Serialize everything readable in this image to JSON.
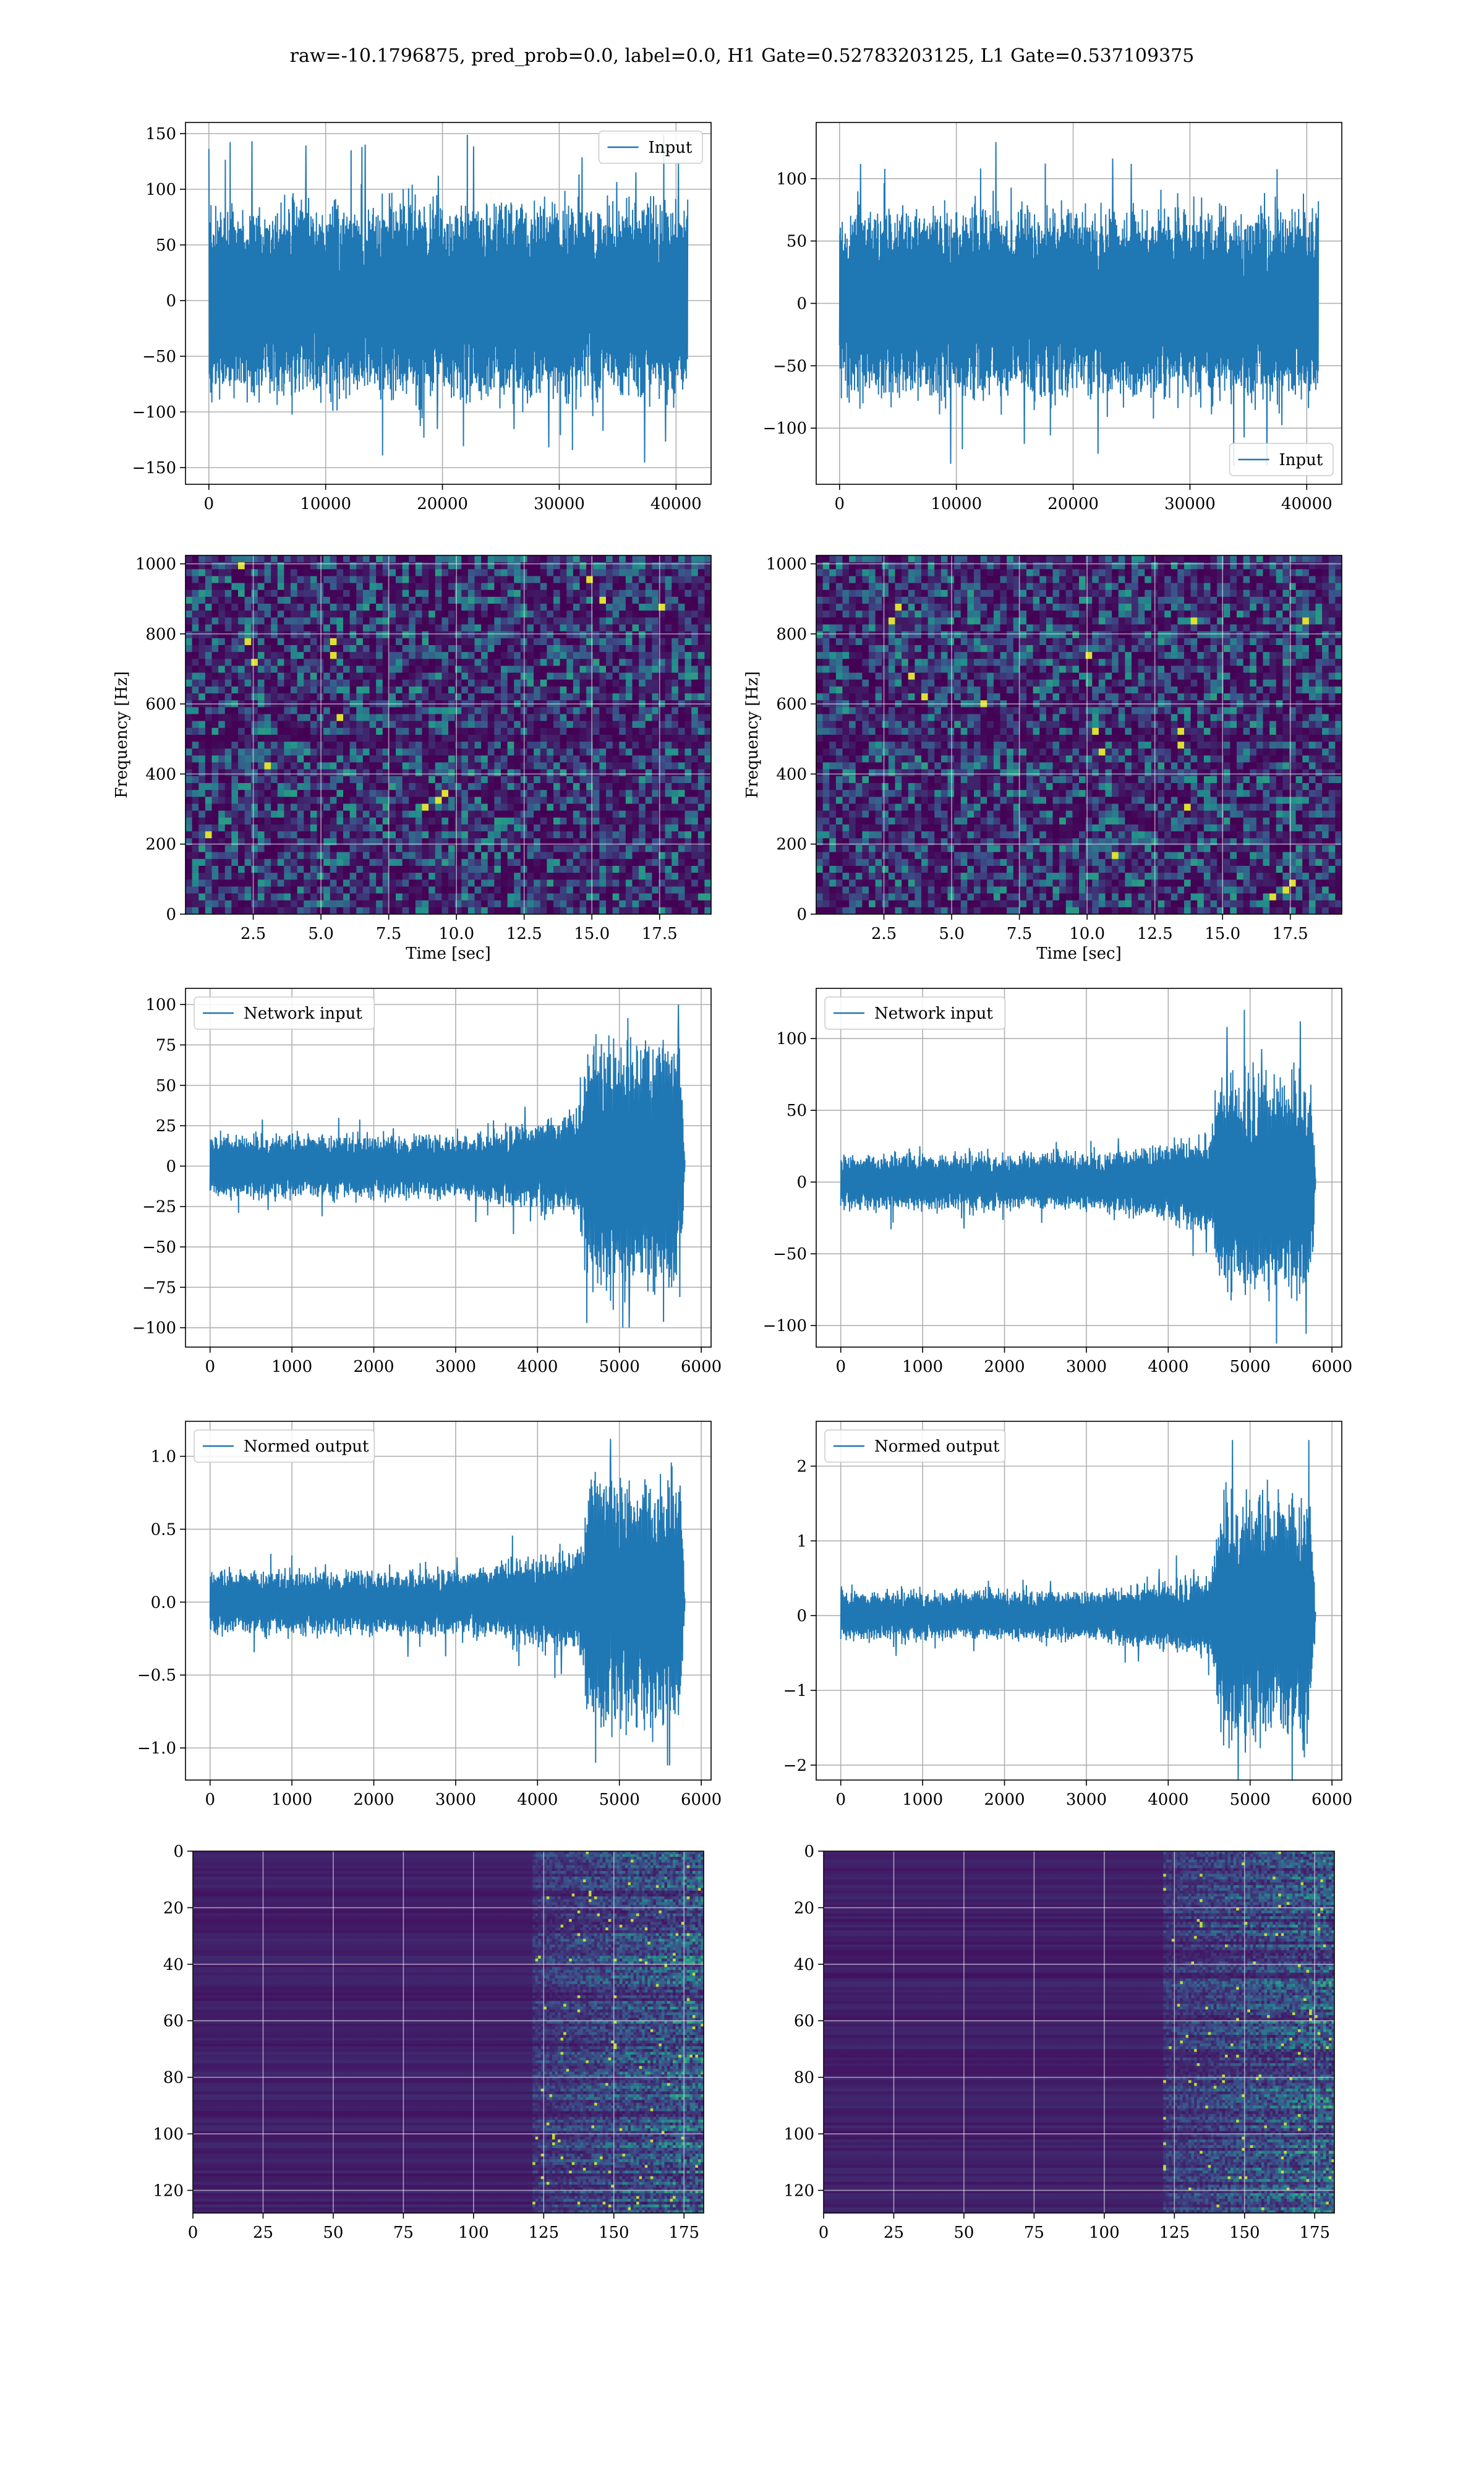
{
  "figure": {
    "suptitle": "raw=-10.1796875, pred_prob=0.0, label=0.0, H1 Gate=0.52783203125, L1 Gate=0.537109375",
    "colors": {
      "line": "#1f77b4",
      "grid": "#b0b0b0",
      "viridis_low": "#440154",
      "viridis_mid": "#21918c",
      "viridis_high": "#fde725"
    }
  },
  "chart_data": [
    {
      "id": "input-h1",
      "type": "line",
      "title": "",
      "xlabel": "",
      "ylabel": "",
      "legend": {
        "label": "Input",
        "loc": "upper right"
      },
      "xlim": [
        -2000,
        43000
      ],
      "ylim": [
        -165,
        160
      ],
      "xticks": [
        0,
        10000,
        20000,
        30000,
        40000
      ],
      "yticks": [
        -150,
        -100,
        -50,
        0,
        50,
        100,
        150
      ],
      "series": [
        {
          "x_range": [
            0,
            41000
          ],
          "points": 1600,
          "envelope": [
            [
              0,
              80
            ],
            [
              0.5,
              80
            ],
            [
              0.85,
              80
            ],
            [
              1,
              80
            ]
          ],
          "spike": 150
        }
      ]
    },
    {
      "id": "input-l1",
      "type": "line",
      "title": "",
      "xlabel": "",
      "ylabel": "",
      "legend": {
        "label": "Input",
        "loc": "lower right"
      },
      "xlim": [
        -2000,
        43000
      ],
      "ylim": [
        -145,
        145
      ],
      "xticks": [
        0,
        10000,
        20000,
        30000,
        40000
      ],
      "yticks": [
        -100,
        -50,
        0,
        50,
        100
      ],
      "series": [
        {
          "x_range": [
            0,
            41000
          ],
          "points": 1600,
          "envelope": [
            [
              0,
              70
            ],
            [
              0.5,
              70
            ],
            [
              0.85,
              70
            ],
            [
              1,
              70
            ]
          ],
          "spike": 130
        }
      ]
    },
    {
      "id": "spectrogram-h1",
      "type": "heatmap",
      "title": "",
      "xlabel": "Time [sec]",
      "ylabel": "Frequency [Hz]",
      "xlim": [
        0,
        19.4
      ],
      "ylim": [
        0,
        1024
      ],
      "xticks": [
        2.5,
        5.0,
        7.5,
        10.0,
        12.5,
        15.0,
        17.5
      ],
      "yticks": [
        0,
        200,
        400,
        600,
        800,
        1000
      ],
      "grid_cells": [
        80,
        52
      ],
      "colormap": "viridis",
      "stripe_rows_hz": [
        500
      ]
    },
    {
      "id": "spectrogram-l1",
      "type": "heatmap",
      "title": "",
      "xlabel": "Time [sec]",
      "ylabel": "Frequency [Hz]",
      "xlim": [
        0,
        19.4
      ],
      "ylim": [
        0,
        1024
      ],
      "xticks": [
        2.5,
        5.0,
        7.5,
        10.0,
        12.5,
        15.0,
        17.5
      ],
      "yticks": [
        0,
        200,
        400,
        600,
        800,
        1000
      ],
      "grid_cells": [
        80,
        52
      ],
      "colormap": "viridis",
      "stripe_rows_hz": [
        500
      ]
    },
    {
      "id": "network-input-h1",
      "type": "line",
      "title": "",
      "xlabel": "",
      "ylabel": "",
      "legend": {
        "label": "Network input",
        "loc": "upper left"
      },
      "xlim": [
        -300,
        6120
      ],
      "ylim": [
        -112,
        110
      ],
      "xticks": [
        0,
        1000,
        2000,
        3000,
        4000,
        5000,
        6000
      ],
      "yticks": [
        -100,
        -75,
        -50,
        -25,
        0,
        25,
        50,
        75,
        100
      ],
      "series": [
        {
          "x_range": [
            0,
            5800
          ],
          "points": 1400,
          "envelope": [
            [
              0,
              18
            ],
            [
              0.55,
              18
            ],
            [
              0.78,
              30
            ],
            [
              0.8,
              70
            ],
            [
              0.99,
              70
            ],
            [
              1,
              4
            ]
          ],
          "spike": 100
        }
      ]
    },
    {
      "id": "network-input-l1",
      "type": "line",
      "title": "",
      "xlabel": "",
      "ylabel": "",
      "legend": {
        "label": "Network input",
        "loc": "upper left"
      },
      "xlim": [
        -300,
        6120
      ],
      "ylim": [
        -115,
        135
      ],
      "xticks": [
        0,
        1000,
        2000,
        3000,
        4000,
        5000,
        6000
      ],
      "yticks": [
        -100,
        -50,
        0,
        50,
        100
      ],
      "series": [
        {
          "x_range": [
            0,
            5800
          ],
          "points": 1400,
          "envelope": [
            [
              0,
              18
            ],
            [
              0.55,
              18
            ],
            [
              0.78,
              30
            ],
            [
              0.8,
              70
            ],
            [
              0.99,
              70
            ],
            [
              1,
              4
            ]
          ],
          "spike": 120
        }
      ]
    },
    {
      "id": "normed-output-h1",
      "type": "line",
      "title": "",
      "xlabel": "",
      "ylabel": "",
      "legend": {
        "label": "Normed output",
        "loc": "upper left"
      },
      "xlim": [
        -300,
        6120
      ],
      "ylim": [
        -1.22,
        1.24
      ],
      "xticks": [
        0,
        1000,
        2000,
        3000,
        4000,
        5000,
        6000
      ],
      "yticks": [
        -1.0,
        -0.5,
        0.0,
        0.5,
        1.0
      ],
      "series": [
        {
          "x_range": [
            0,
            5800
          ],
          "points": 1400,
          "envelope": [
            [
              0,
              0.2
            ],
            [
              0.55,
              0.2
            ],
            [
              0.78,
              0.33
            ],
            [
              0.8,
              0.8
            ],
            [
              0.99,
              0.8
            ],
            [
              1,
              0.04
            ]
          ],
          "spike": 1.12
        }
      ]
    },
    {
      "id": "normed-output-l1",
      "type": "line",
      "title": "",
      "xlabel": "",
      "ylabel": "",
      "legend": {
        "label": "Normed output",
        "loc": "upper left"
      },
      "xlim": [
        -300,
        6120
      ],
      "ylim": [
        -2.2,
        2.6
      ],
      "xticks": [
        0,
        1000,
        2000,
        3000,
        4000,
        5000,
        6000
      ],
      "yticks": [
        -2,
        -1,
        0,
        1,
        2
      ],
      "series": [
        {
          "x_range": [
            0,
            5800
          ],
          "points": 1400,
          "envelope": [
            [
              0,
              0.3
            ],
            [
              0.55,
              0.3
            ],
            [
              0.78,
              0.5
            ],
            [
              0.8,
              1.5
            ],
            [
              0.99,
              1.5
            ],
            [
              1,
              0.05
            ]
          ],
          "spike": 2.35
        }
      ]
    },
    {
      "id": "feature-map-h1",
      "type": "heatmap",
      "title": "",
      "xlabel": "",
      "ylabel": "",
      "xlim": [
        0,
        182
      ],
      "ylim": [
        128,
        0
      ],
      "xticks": [
        0,
        25,
        50,
        75,
        100,
        125,
        150,
        175
      ],
      "yticks": [
        0,
        20,
        40,
        60,
        80,
        100,
        120
      ],
      "grid_cells": [
        182,
        128
      ],
      "colormap": "viridis",
      "active_from_x": 120
    },
    {
      "id": "feature-map-l1",
      "type": "heatmap",
      "title": "",
      "xlabel": "",
      "ylabel": "",
      "xlim": [
        0,
        182
      ],
      "ylim": [
        128,
        0
      ],
      "xticks": [
        0,
        25,
        50,
        75,
        100,
        125,
        150,
        175
      ],
      "yticks": [
        0,
        20,
        40,
        60,
        80,
        100,
        120
      ],
      "grid_cells": [
        182,
        128
      ],
      "colormap": "viridis",
      "active_from_x": 120
    }
  ]
}
